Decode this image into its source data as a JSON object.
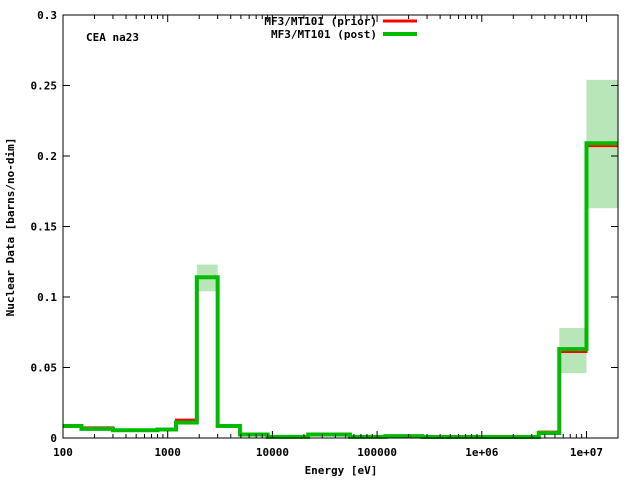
{
  "chart_data": {
    "type": "line",
    "title": "",
    "annotation": "CEA na23",
    "xlabel": "Energy [eV]",
    "ylabel": "Nuclear Data [barns/no-dim]",
    "xscale": "log",
    "xlim": [
      100,
      20000000
    ],
    "ylim": [
      0,
      0.3
    ],
    "x_ticks": [
      {
        "value": 100,
        "label": "100"
      },
      {
        "value": 1000,
        "label": "1000"
      },
      {
        "value": 10000,
        "label": "10000"
      },
      {
        "value": 100000,
        "label": "100000"
      },
      {
        "value": 1000000,
        "label": "1e+06"
      },
      {
        "value": 10000000,
        "label": "1e+07"
      }
    ],
    "y_ticks": [
      {
        "value": 0,
        "label": "0"
      },
      {
        "value": 0.05,
        "label": "0.05"
      },
      {
        "value": 0.1,
        "label": "0.1"
      },
      {
        "value": 0.15,
        "label": "0.15"
      },
      {
        "value": 0.2,
        "label": "0.2"
      },
      {
        "value": 0.25,
        "label": "0.25"
      },
      {
        "value": 0.3,
        "label": "0.3"
      }
    ],
    "grid": false,
    "legend_position": "top-center",
    "bin_edges": [
      100,
      150,
      300,
      800,
      1200,
      1900,
      3000,
      4900,
      9000,
      22000,
      55000,
      120000,
      270000,
      3500000,
      5500000,
      10000000,
      20000000
    ],
    "series": [
      {
        "name": "MF3/MT101 (prior)",
        "color": "#ff0000",
        "values": [
          0.0085,
          0.0075,
          0.006,
          0.0065,
          0.013,
          0.114,
          0.0085,
          0.0025,
          0.0008,
          0.0025,
          0.0008,
          0.0013,
          0.0007,
          0.0045,
          0.061,
          0.207
        ]
      },
      {
        "name": "MF3/MT101 (post)",
        "color": "#00bb00",
        "values": [
          0.0085,
          0.0065,
          0.0055,
          0.006,
          0.011,
          0.114,
          0.0085,
          0.0025,
          0.0008,
          0.0025,
          0.0008,
          0.0013,
          0.0007,
          0.0035,
          0.063,
          0.209
        ]
      }
    ],
    "uncertainty_band": {
      "series": "MF3/MT101 (post)",
      "fill_color": "#b8e6b8",
      "lower": [
        0.0075,
        0.0055,
        0.005,
        0.0055,
        0.0095,
        0.104,
        0.0075,
        0.002,
        0.0005,
        0.002,
        0.0005,
        0.001,
        0.0005,
        0.003,
        0.046,
        0.163
      ],
      "upper": [
        0.0095,
        0.0075,
        0.006,
        0.0065,
        0.0125,
        0.123,
        0.0095,
        0.003,
        0.0011,
        0.003,
        0.0011,
        0.0016,
        0.0009,
        0.004,
        0.078,
        0.254
      ]
    }
  }
}
